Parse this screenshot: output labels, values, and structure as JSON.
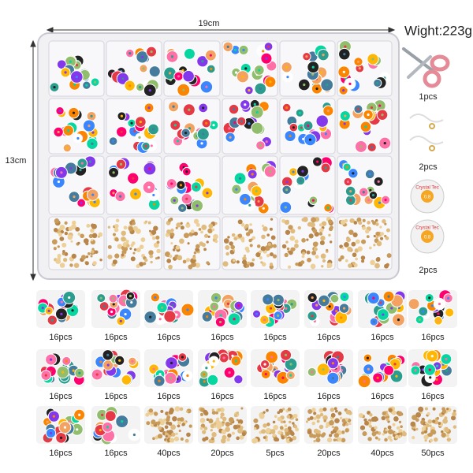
{
  "dimensions": {
    "width": "19cm",
    "height": "13cm"
  },
  "weight": "Wight:223g",
  "accessories": [
    {
      "label": "1pcs"
    },
    {
      "label": "2pcs"
    },
    {
      "label": "2pcs"
    }
  ],
  "spool_text": {
    "brand": "Crystal Tec",
    "size": "0.8"
  },
  "thumbnails": [
    [
      "16pcs",
      "16pcs",
      "16pcs",
      "16pcs",
      "16pcs",
      "16pcs",
      "16pcs",
      "16pcs"
    ],
    [
      "16pcs",
      "16pcs",
      "16pcs",
      "16pcs",
      "16pcs",
      "16pcs",
      "16pcs",
      "16pcs"
    ],
    [
      "16pcs",
      "16pcs",
      "40pcs",
      "20pcs",
      "5pcs",
      "20pcs",
      "40pcs",
      "50pcs"
    ]
  ]
}
